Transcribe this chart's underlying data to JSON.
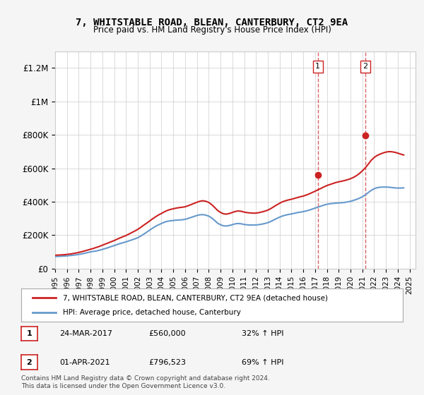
{
  "title": "7, WHITSTABLE ROAD, BLEAN, CANTERBURY, CT2 9EA",
  "subtitle": "Price paid vs. HM Land Registry's House Price Index (HPI)",
  "ylabel_ticks": [
    "£0",
    "£200K",
    "£400K",
    "£600K",
    "£800K",
    "£1M",
    "£1.2M"
  ],
  "ytick_values": [
    0,
    200000,
    400000,
    600000,
    800000,
    1000000,
    1200000
  ],
  "ylim": [
    0,
    1300000
  ],
  "xlim_start": 1995.0,
  "xlim_end": 2025.5,
  "transaction1": {
    "date_x": 2017.23,
    "price": 560000,
    "label": "1",
    "date_str": "24-MAR-2017",
    "pct": "32% ↑ HPI"
  },
  "transaction2": {
    "date_x": 2021.25,
    "price": 796523,
    "label": "2",
    "date_str": "01-APR-2021",
    "pct": "69% ↑ HPI"
  },
  "hpi_line_color": "#6699cc",
  "price_line_color": "#cc2222",
  "vline_color": "#cc2222",
  "vline_alpha": 0.5,
  "background_color": "#f5f5f5",
  "plot_bg_color": "#ffffff",
  "legend_label_price": "7, WHITSTABLE ROAD, BLEAN, CANTERBURY, CT2 9EA (detached house)",
  "legend_label_hpi": "HPI: Average price, detached house, Canterbury",
  "footer": "Contains HM Land Registry data © Crown copyright and database right 2024.\nThis data is licensed under the Open Government Licence v3.0.",
  "hpi_data_x": [
    1995,
    1995.25,
    1995.5,
    1995.75,
    1996,
    1996.25,
    1996.5,
    1996.75,
    1997,
    1997.25,
    1997.5,
    1997.75,
    1998,
    1998.25,
    1998.5,
    1998.75,
    1999,
    1999.25,
    1999.5,
    1999.75,
    2000,
    2000.25,
    2000.5,
    2000.75,
    2001,
    2001.25,
    2001.5,
    2001.75,
    2002,
    2002.25,
    2002.5,
    2002.75,
    2003,
    2003.25,
    2003.5,
    2003.75,
    2004,
    2004.25,
    2004.5,
    2004.75,
    2005,
    2005.25,
    2005.5,
    2005.75,
    2006,
    2006.25,
    2006.5,
    2006.75,
    2007,
    2007.25,
    2007.5,
    2007.75,
    2008,
    2008.25,
    2008.5,
    2008.75,
    2009,
    2009.25,
    2009.5,
    2009.75,
    2010,
    2010.25,
    2010.5,
    2010.75,
    2011,
    2011.25,
    2011.5,
    2011.75,
    2012,
    2012.25,
    2012.5,
    2012.75,
    2013,
    2013.25,
    2013.5,
    2013.75,
    2014,
    2014.25,
    2014.5,
    2014.75,
    2015,
    2015.25,
    2015.5,
    2015.75,
    2016,
    2016.25,
    2016.5,
    2016.75,
    2017,
    2017.25,
    2017.5,
    2017.75,
    2018,
    2018.25,
    2018.5,
    2018.75,
    2019,
    2019.25,
    2019.5,
    2019.75,
    2020,
    2020.25,
    2020.5,
    2020.75,
    2021,
    2021.25,
    2021.5,
    2021.75,
    2022,
    2022.25,
    2022.5,
    2022.75,
    2023,
    2023.25,
    2023.5,
    2023.75,
    2024,
    2024.25,
    2024.5
  ],
  "hpi_data_y": [
    72000,
    73000,
    74000,
    75000,
    76000,
    78000,
    80000,
    82000,
    85000,
    88000,
    92000,
    96000,
    100000,
    103000,
    106000,
    110000,
    115000,
    120000,
    126000,
    132000,
    138000,
    144000,
    150000,
    155000,
    160000,
    166000,
    172000,
    178000,
    185000,
    195000,
    206000,
    218000,
    230000,
    242000,
    253000,
    262000,
    270000,
    278000,
    283000,
    286000,
    288000,
    290000,
    291000,
    292000,
    295000,
    300000,
    306000,
    312000,
    318000,
    322000,
    323000,
    320000,
    314000,
    303000,
    288000,
    272000,
    262000,
    256000,
    255000,
    258000,
    263000,
    268000,
    270000,
    268000,
    264000,
    262000,
    261000,
    261000,
    261000,
    263000,
    266000,
    270000,
    275000,
    282000,
    291000,
    300000,
    308000,
    315000,
    320000,
    324000,
    327000,
    331000,
    335000,
    338000,
    341000,
    345000,
    350000,
    356000,
    362000,
    368000,
    374000,
    380000,
    385000,
    388000,
    390000,
    392000,
    393000,
    394000,
    396000,
    399000,
    403000,
    408000,
    414000,
    421000,
    430000,
    441000,
    455000,
    468000,
    478000,
    484000,
    487000,
    488000,
    488000,
    487000,
    485000,
    483000,
    482000,
    482000,
    483000
  ],
  "price_data_x": [
    1995,
    1995.25,
    1995.5,
    1995.75,
    1996,
    1996.25,
    1996.5,
    1996.75,
    1997,
    1997.25,
    1997.5,
    1997.75,
    1998,
    1998.25,
    1998.5,
    1998.75,
    1999,
    1999.25,
    1999.5,
    1999.75,
    2000,
    2000.25,
    2000.5,
    2000.75,
    2001,
    2001.25,
    2001.5,
    2001.75,
    2002,
    2002.25,
    2002.5,
    2002.75,
    2003,
    2003.25,
    2003.5,
    2003.75,
    2004,
    2004.25,
    2004.5,
    2004.75,
    2005,
    2005.25,
    2005.5,
    2005.75,
    2006,
    2006.25,
    2006.5,
    2006.75,
    2007,
    2007.25,
    2007.5,
    2007.75,
    2008,
    2008.25,
    2008.5,
    2008.75,
    2009,
    2009.25,
    2009.5,
    2009.75,
    2010,
    2010.25,
    2010.5,
    2010.75,
    2011,
    2011.25,
    2011.5,
    2011.75,
    2012,
    2012.25,
    2012.5,
    2012.75,
    2013,
    2013.25,
    2013.5,
    2013.75,
    2014,
    2014.25,
    2014.5,
    2014.75,
    2015,
    2015.25,
    2015.5,
    2015.75,
    2016,
    2016.25,
    2016.5,
    2016.75,
    2017,
    2017.25,
    2017.5,
    2017.75,
    2018,
    2018.25,
    2018.5,
    2018.75,
    2019,
    2019.25,
    2019.5,
    2019.75,
    2020,
    2020.25,
    2020.5,
    2020.75,
    2021,
    2021.25,
    2021.5,
    2021.75,
    2022,
    2022.25,
    2022.5,
    2022.75,
    2023,
    2023.25,
    2023.5,
    2023.75,
    2024,
    2024.25,
    2024.5
  ],
  "price_data_y": [
    80000,
    81000,
    82000,
    83000,
    85000,
    87000,
    90000,
    93000,
    97000,
    101000,
    106000,
    111000,
    116000,
    121000,
    127000,
    133000,
    140000,
    147000,
    154000,
    161000,
    168000,
    176000,
    184000,
    191000,
    198000,
    207000,
    216000,
    225000,
    235000,
    247000,
    260000,
    272000,
    285000,
    298000,
    310000,
    321000,
    330000,
    340000,
    348000,
    354000,
    358000,
    362000,
    365000,
    367000,
    370000,
    376000,
    383000,
    390000,
    397000,
    403000,
    406000,
    403000,
    396000,
    383000,
    366000,
    348000,
    336000,
    328000,
    326000,
    330000,
    336000,
    342000,
    345000,
    343000,
    338000,
    335000,
    333000,
    332000,
    332000,
    335000,
    339000,
    344000,
    350000,
    359000,
    370000,
    381000,
    391000,
    400000,
    406000,
    411000,
    415000,
    420000,
    425000,
    430000,
    434000,
    440000,
    447000,
    455000,
    463000,
    472000,
    480000,
    489000,
    497000,
    503000,
    509000,
    515000,
    519000,
    523000,
    527000,
    532000,
    538000,
    546000,
    556000,
    569000,
    585000,
    603000,
    625000,
    648000,
    665000,
    677000,
    685000,
    692000,
    697000,
    700000,
    699000,
    696000,
    691000,
    685000,
    680000
  ],
  "xtick_years": [
    1995,
    1996,
    1997,
    1998,
    1999,
    2000,
    2001,
    2002,
    2003,
    2004,
    2005,
    2006,
    2007,
    2008,
    2009,
    2010,
    2011,
    2012,
    2013,
    2014,
    2015,
    2016,
    2017,
    2018,
    2019,
    2020,
    2021,
    2022,
    2023,
    2024,
    2025
  ]
}
